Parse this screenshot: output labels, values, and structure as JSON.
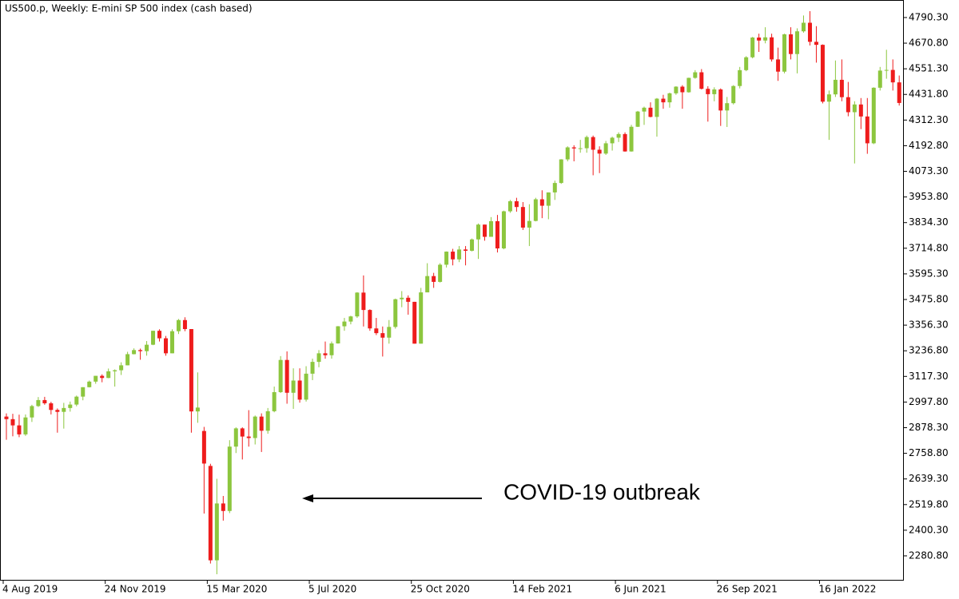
{
  "chart_data": {
    "type": "candlestick",
    "title": "US500.p, Weekly:  E-mini SP 500 index (cash based)",
    "annotation": "COVID-19 outbreak",
    "categories": [
      "4 Aug 2019",
      null,
      null,
      null,
      null,
      null,
      null,
      null,
      null,
      null,
      null,
      null,
      null,
      null,
      null,
      null,
      "24 Nov 2019",
      null,
      null,
      null,
      null,
      null,
      null,
      null,
      null,
      null,
      null,
      null,
      null,
      null,
      null,
      null,
      "15 Mar 2020",
      null,
      null,
      null,
      null,
      null,
      null,
      null,
      null,
      null,
      null,
      null,
      null,
      null,
      null,
      null,
      "5 Jul 2020",
      null,
      null,
      null,
      null,
      null,
      null,
      null,
      null,
      null,
      null,
      null,
      null,
      null,
      null,
      null,
      "25 Oct 2020",
      null,
      null,
      null,
      null,
      null,
      null,
      null,
      null,
      null,
      null,
      null,
      null,
      null,
      null,
      null,
      "14 Feb 2021",
      null,
      null,
      null,
      null,
      null,
      null,
      null,
      null,
      null,
      null,
      null,
      null,
      null,
      null,
      null,
      "6 Jun 2021",
      null,
      null,
      null,
      null,
      null,
      null,
      null,
      null,
      null,
      null,
      null,
      null,
      null,
      null,
      null,
      "26 Sep 2021",
      null,
      null,
      null,
      null,
      null,
      null,
      null,
      null,
      null,
      null,
      null,
      null,
      null,
      null,
      null,
      "16 Jan 2022",
      null,
      null,
      null,
      null,
      null,
      null,
      null,
      null,
      null,
      null,
      null,
      null
    ],
    "open": [
      2930,
      2918,
      2889,
      2847,
      2926,
      2979,
      3007,
      2992,
      2961,
      2952,
      2970,
      2986,
      3023,
      3067,
      3093,
      3120,
      3110,
      3141,
      3146,
      3169,
      3221,
      3240,
      3235,
      3265,
      3330,
      3295,
      3225,
      3328,
      3380,
      3338,
      2954,
      2863,
      2700,
      2260,
      2525,
      2490,
      2790,
      2875,
      2837,
      2830,
      2930,
      2864,
      2955,
      3044,
      3194,
      3041,
      3098,
      3009,
      3130,
      3185,
      3225,
      3216,
      3271,
      3351,
      3373,
      3397,
      3508,
      3427,
      3341,
      3319,
      3298,
      3348,
      3477,
      3484,
      3465,
      3270,
      3509,
      3585,
      3558,
      3638,
      3699,
      3663,
      3709,
      3703,
      3756,
      3825,
      3768,
      3841,
      3714,
      3887,
      3934,
      3907,
      3811,
      3842,
      3943,
      3913,
      3975,
      4019,
      4129,
      4185,
      4180,
      4181,
      4233,
      4174,
      4156,
      4204,
      4230,
      4247,
      4166,
      4281,
      4352,
      4370,
      4327,
      4412,
      4395,
      4437,
      4468,
      4442,
      4509,
      4535,
      4458,
      4433,
      4455,
      4357,
      4391,
      4471,
      4545,
      4605,
      4697,
      4683,
      4698,
      4595,
      4538,
      4712,
      4620,
      4726,
      4766,
      4677,
      4663,
      4398,
      4432,
      4500,
      4419,
      4349,
      4385,
      4329,
      4204,
      4463,
      4543,
      4546,
      4488
    ],
    "high": [
      2945,
      2943,
      2939,
      2940,
      2985,
      3021,
      3022,
      2999,
      2968,
      2994,
      3000,
      3028,
      3067,
      3098,
      3120,
      3127,
      3154,
      3150,
      3183,
      3232,
      3248,
      3247,
      3282,
      3330,
      3337,
      3306,
      3337,
      3385,
      3393,
      3338,
      3136,
      2882,
      2710,
      2640,
      2560,
      2820,
      2880,
      2880,
      2960,
      2935,
      2945,
      2970,
      3070,
      3212,
      3234,
      3155,
      3155,
      3165,
      3200,
      3240,
      3280,
      3280,
      3352,
      3390,
      3400,
      3510,
      3588,
      3430,
      3390,
      3350,
      3380,
      3480,
      3515,
      3495,
      3465,
      3530,
      3645,
      3600,
      3645,
      3700,
      3712,
      3725,
      3725,
      3760,
      3830,
      3825,
      3860,
      3870,
      3890,
      3940,
      3950,
      3930,
      3920,
      3950,
      3985,
      3975,
      4030,
      4130,
      4190,
      4195,
      4220,
      4240,
      4240,
      4190,
      4215,
      4235,
      4255,
      4255,
      4290,
      4355,
      4375,
      4395,
      4415,
      4430,
      4440,
      4470,
      4475,
      4510,
      4545,
      4550,
      4470,
      4465,
      4460,
      4420,
      4475,
      4560,
      4610,
      4700,
      4715,
      4745,
      4715,
      4650,
      4715,
      4745,
      4740,
      4800,
      4820,
      4750,
      4665,
      4450,
      4590,
      4595,
      4490,
      4400,
      4415,
      4415,
      4465,
      4560,
      4640,
      4595,
      4520
    ],
    "low": [
      2822,
      2838,
      2834,
      2840,
      2905,
      2975,
      2985,
      2940,
      2855,
      2874,
      2953,
      2978,
      3006,
      3066,
      3083,
      3090,
      3109,
      3070,
      3124,
      3169,
      3220,
      3195,
      3214,
      3263,
      3280,
      3214,
      3225,
      3315,
      3328,
      2855,
      2901,
      2478,
      2245,
      2195,
      2445,
      2480,
      2760,
      2730,
      2790,
      2800,
      2765,
      2850,
      2950,
      3040,
      2990,
      2966,
      2995,
      3000,
      3100,
      3160,
      3200,
      3200,
      3270,
      3330,
      3360,
      3390,
      3350,
      3330,
      3310,
      3210,
      3270,
      3340,
      3440,
      3405,
      3270,
      3270,
      3510,
      3530,
      3555,
      3625,
      3635,
      3650,
      3635,
      3700,
      3665,
      3750,
      3770,
      3695,
      3710,
      3880,
      3885,
      3800,
      3725,
      3840,
      3855,
      3850,
      3940,
      4015,
      4120,
      4120,
      4160,
      4160,
      4055,
      4065,
      4150,
      4170,
      4210,
      4165,
      4165,
      4280,
      4290,
      4325,
      4235,
      4365,
      4370,
      4430,
      4365,
      4440,
      4505,
      4455,
      4305,
      4400,
      4285,
      4280,
      4385,
      4460,
      4540,
      4600,
      4630,
      4670,
      4585,
      4495,
      4530,
      4595,
      4530,
      4720,
      4660,
      4580,
      4390,
      4220,
      4420,
      4400,
      4330,
      4110,
      4270,
      4155,
      4200,
      4450,
      4505,
      4450,
      4380
    ],
    "close": [
      2918,
      2889,
      2847,
      2926,
      2979,
      3007,
      2992,
      2961,
      2952,
      2970,
      2986,
      3023,
      3067,
      3093,
      3120,
      3110,
      3141,
      3146,
      3169,
      3221,
      3240,
      3235,
      3265,
      3330,
      3295,
      3225,
      3328,
      3380,
      3338,
      2954,
      2972,
      2711,
      2260,
      2525,
      2490,
      2790,
      2875,
      2837,
      2830,
      2930,
      2864,
      2955,
      3044,
      3194,
      3041,
      3098,
      3009,
      3130,
      3185,
      3225,
      3216,
      3271,
      3351,
      3373,
      3397,
      3508,
      3427,
      3341,
      3319,
      3298,
      3348,
      3477,
      3484,
      3465,
      3270,
      3509,
      3585,
      3558,
      3638,
      3699,
      3663,
      3709,
      3703,
      3756,
      3825,
      3768,
      3841,
      3714,
      3887,
      3934,
      3907,
      3811,
      3842,
      3943,
      3913,
      3975,
      4019,
      4129,
      4185,
      4180,
      4181,
      4233,
      4174,
      4156,
      4204,
      4230,
      4247,
      4166,
      4281,
      4352,
      4370,
      4327,
      4412,
      4395,
      4437,
      4468,
      4442,
      4509,
      4535,
      4458,
      4433,
      4455,
      4357,
      4391,
      4471,
      4545,
      4605,
      4697,
      4683,
      4698,
      4595,
      4538,
      4712,
      4620,
      4726,
      4766,
      4677,
      4663,
      4398,
      4432,
      4500,
      4419,
      4349,
      4385,
      4329,
      4204,
      4463,
      4543,
      4546,
      4488,
      4392
    ],
    "up_color": "#8cc63e",
    "down_color": "#ee1c1c",
    "ylim": [
      2169,
      4872
    ],
    "yticks": [
      {
        "value": 4790.3,
        "label": "4790.30"
      },
      {
        "value": 4670.8,
        "label": "4670.80"
      },
      {
        "value": 4551.3,
        "label": "4551.30"
      },
      {
        "value": 4431.8,
        "label": "4431.80"
      },
      {
        "value": 4312.3,
        "label": "4312.30"
      },
      {
        "value": 4192.8,
        "label": "4192.80"
      },
      {
        "value": 4073.3,
        "label": "4073.30"
      },
      {
        "value": 3953.8,
        "label": "3953.80"
      },
      {
        "value": 3834.3,
        "label": "3834.30"
      },
      {
        "value": 3714.8,
        "label": "3714.80"
      },
      {
        "value": 3595.3,
        "label": "3595.30"
      },
      {
        "value": 3475.8,
        "label": "3475.80"
      },
      {
        "value": 3356.3,
        "label": "3356.30"
      },
      {
        "value": 3236.8,
        "label": "3236.80"
      },
      {
        "value": 3117.3,
        "label": "3117.30"
      },
      {
        "value": 2997.8,
        "label": "2997.80"
      },
      {
        "value": 2878.3,
        "label": "2878.30"
      },
      {
        "value": 2758.8,
        "label": "2758.80"
      },
      {
        "value": 2639.3,
        "label": "2639.30"
      },
      {
        "value": 2519.8,
        "label": "2519.80"
      },
      {
        "value": 2400.3,
        "label": "2400.30"
      },
      {
        "value": 2280.8,
        "label": "2280.80"
      }
    ]
  }
}
